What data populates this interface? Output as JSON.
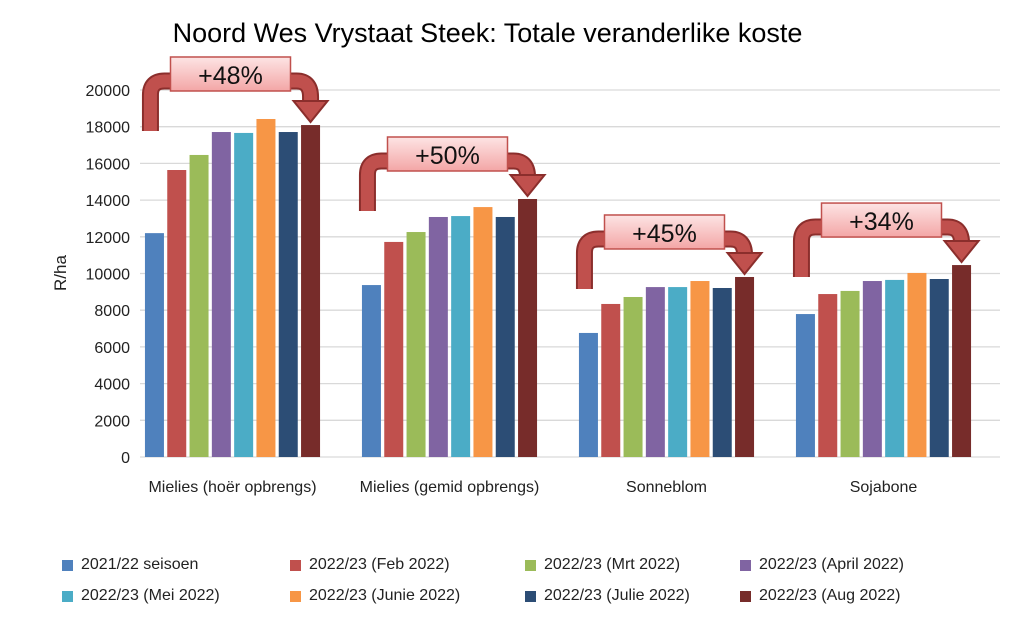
{
  "chart_data": {
    "type": "bar",
    "title": "Noord Wes Vrystaat Steek: Totale veranderlike koste",
    "xlabel": "",
    "ylabel": "R/ha",
    "ylim": [
      0,
      20000
    ],
    "yticks": [
      0,
      2000,
      4000,
      6000,
      8000,
      10000,
      12000,
      14000,
      16000,
      18000,
      20000
    ],
    "grid": true,
    "legend_position": "bottom",
    "categories": [
      "Mielies (hoër opbrengs)",
      "Mielies (gemid opbrengs)",
      "Sonneblom",
      "Sojabone"
    ],
    "series": [
      {
        "name": "2021/22 seisoen",
        "color": "#4f81bd",
        "values": [
          12200,
          9370,
          6760,
          7790
        ]
      },
      {
        "name": "2022/23 (Feb 2022)",
        "color": "#c0504d",
        "values": [
          15640,
          11720,
          8340,
          8880
        ]
      },
      {
        "name": "2022/23 (Mrt 2022)",
        "color": "#9bbb59",
        "values": [
          16460,
          12260,
          8720,
          9050
        ]
      },
      {
        "name": "2022/23 (April 2022)",
        "color": "#8064a2",
        "values": [
          17710,
          13080,
          9260,
          9590
        ]
      },
      {
        "name": "2022/23 (Mei 2022)",
        "color": "#4bacc6",
        "values": [
          17660,
          13130,
          9260,
          9650
        ]
      },
      {
        "name": "2022/23 (Junie 2022)",
        "color": "#f79646",
        "values": [
          18420,
          13620,
          9590,
          10030
        ]
      },
      {
        "name": "2022/23 (Julie 2022)",
        "color": "#2c4d75",
        "values": [
          17710,
          13080,
          9210,
          9700
        ]
      },
      {
        "name": "2022/23 (Aug 2022)",
        "color": "#772c2a",
        "values": [
          18090,
          14060,
          9810,
          10460
        ]
      }
    ],
    "annotations": [
      "+48%",
      "+50%",
      "+45%",
      "+34%"
    ]
  }
}
